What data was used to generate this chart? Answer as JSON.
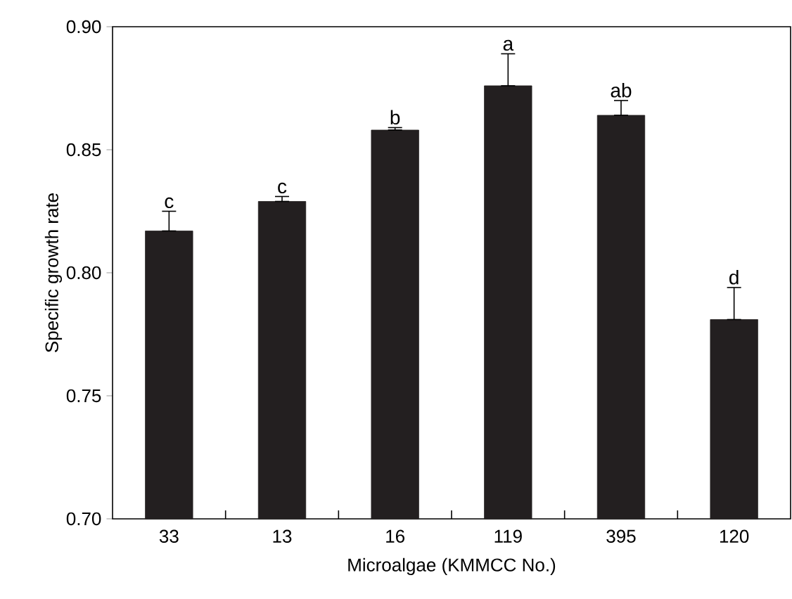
{
  "chart_data": {
    "type": "bar",
    "xlabel": "Microalgae (KMMCC No.)",
    "ylabel": "Specific growth rate",
    "categories": [
      "33",
      "13",
      "16",
      "119",
      "395",
      "120"
    ],
    "values": [
      0.817,
      0.829,
      0.858,
      0.876,
      0.864,
      0.781
    ],
    "errors": [
      [
        0.817,
        0.825
      ],
      [
        0.829,
        0.831
      ],
      [
        0.858,
        0.859
      ],
      [
        0.876,
        0.889
      ],
      [
        0.864,
        0.87
      ],
      [
        0.781,
        0.794
      ]
    ],
    "color": "#231f20",
    "ylim": [
      0.7,
      0.9
    ],
    "yticks": [
      {
        "value": 0.7,
        "label": "0.70"
      },
      {
        "value": 0.75,
        "label": "0.75"
      },
      {
        "value": 0.8,
        "label": "0.80"
      },
      {
        "value": 0.85,
        "label": "0.85"
      },
      {
        "value": 0.9,
        "label": "0.90"
      }
    ],
    "annotations": [
      "c",
      "c",
      "b",
      "a",
      "ab",
      "d"
    ],
    "grid": false
  }
}
